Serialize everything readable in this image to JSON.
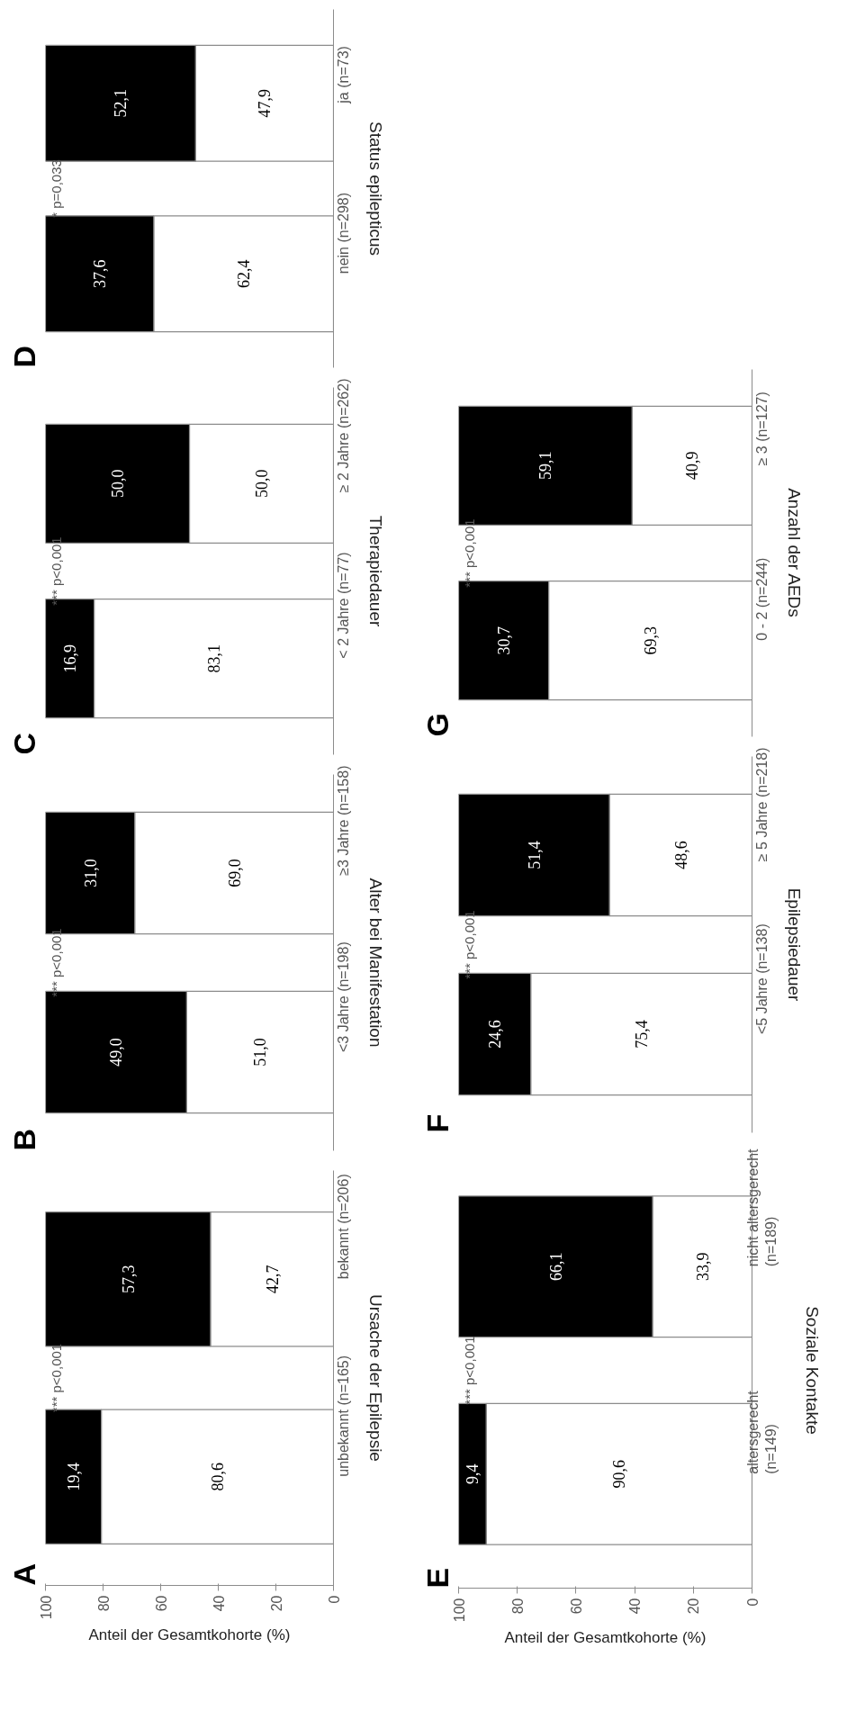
{
  "chart_data": [
    {
      "type": "bar",
      "title": "A",
      "orientation": "horizontal",
      "stacked": true,
      "categories": [
        "bekannt (n=206)",
        "unbekannt (n=165)"
      ],
      "series": [
        {
          "color": "#ffffff",
          "values": [
            42.7,
            80.6
          ],
          "value_labels": [
            "42,7",
            "80,6"
          ]
        },
        {
          "color": "#000000",
          "values": [
            57.3,
            19.4
          ],
          "value_labels": [
            "57,3",
            "19,4"
          ]
        }
      ],
      "xlim": [
        100,
        0
      ],
      "xticks": [
        100,
        80,
        60,
        40,
        20,
        0
      ],
      "xlabel": "Anteil der Gesamtkohorte (%)",
      "ylabel": "Ursache der Epilepsie",
      "annotations": [
        "*** p<0,001"
      ]
    },
    {
      "type": "bar",
      "title": "B",
      "orientation": "horizontal",
      "stacked": true,
      "categories": [
        "≥3 Jahre (n=158)",
        "<3 Jahre (n=198)"
      ],
      "series": [
        {
          "color": "#ffffff",
          "values": [
            69.0,
            51.0
          ],
          "value_labels": [
            "69,0",
            "51,0"
          ]
        },
        {
          "color": "#000000",
          "values": [
            31.0,
            49.0
          ],
          "value_labels": [
            "31,0",
            "49,0"
          ]
        }
      ],
      "xlim": [
        100,
        0
      ],
      "tick_labels": "y",
      "ylabel": "Alter bei Manifestation",
      "annotations": [
        "*** p<0,001"
      ]
    },
    {
      "type": "bar",
      "title": "C",
      "orientation": "horizontal",
      "stacked": true,
      "categories": [
        "≥ 2 Jahre (n=262)",
        "< 2 Jahre (n=77)"
      ],
      "series": [
        {
          "color": "#ffffff",
          "values": [
            50.0,
            83.1
          ],
          "value_labels": [
            "50,0",
            "83,1"
          ]
        },
        {
          "color": "#000000",
          "values": [
            50.0,
            16.9
          ],
          "value_labels": [
            "50,0",
            "16,9"
          ]
        }
      ],
      "xlim": [
        100,
        0
      ],
      "tick_labels": "y",
      "ylabel": "Therapiedauer",
      "annotations": [
        "*** p<0,001"
      ]
    },
    {
      "type": "bar",
      "title": "D",
      "orientation": "horizontal",
      "stacked": true,
      "categories": [
        "ja (n=73)",
        "nein (n=298)"
      ],
      "series": [
        {
          "color": "#ffffff",
          "values": [
            47.9,
            62.4
          ],
          "value_labels": [
            "47,9",
            "62,4"
          ]
        },
        {
          "color": "#000000",
          "values": [
            52.1,
            37.6
          ],
          "value_labels": [
            "52,1",
            "37,6"
          ]
        }
      ],
      "xlim": [
        100,
        0
      ],
      "tick_labels": "y",
      "ylabel": "Status epilepticus",
      "annotations": [
        "* p=0,033"
      ]
    },
    {
      "type": "bar",
      "title": "E",
      "orientation": "horizontal",
      "stacked": true,
      "categories": [
        "nicht altersgerecht\n(n=189)",
        "altersgerecht\n(n=149)"
      ],
      "series": [
        {
          "color": "#ffffff",
          "values": [
            33.9,
            90.6
          ],
          "value_labels": [
            "33,9",
            "90,6"
          ]
        },
        {
          "color": "#000000",
          "values": [
            66.1,
            9.4
          ],
          "value_labels": [
            "66,1",
            "9,4"
          ]
        }
      ],
      "xlim": [
        100,
        0
      ],
      "xticks": [
        100,
        80,
        60,
        40,
        20,
        0
      ],
      "xlabel": "Anteil der Gesamtkohorte (%)",
      "ylabel": "Soziale Kontakte",
      "annotations": [
        "*** p<0,001"
      ]
    },
    {
      "type": "bar",
      "title": "F",
      "orientation": "horizontal",
      "stacked": true,
      "categories": [
        "≥ 5 Jahre (n=218)",
        "<5 Jahre (n=138)"
      ],
      "series": [
        {
          "color": "#ffffff",
          "values": [
            48.6,
            75.4
          ],
          "value_labels": [
            "48,6",
            "75,4"
          ]
        },
        {
          "color": "#000000",
          "values": [
            51.4,
            24.6
          ],
          "value_labels": [
            "51,4",
            "24,6"
          ]
        }
      ],
      "xlim": [
        100,
        0
      ],
      "tick_labels": "y",
      "ylabel": "Epilepsiedauer",
      "annotations": [
        "*** p<0,001"
      ]
    },
    {
      "type": "bar",
      "title": "G",
      "orientation": "horizontal",
      "stacked": true,
      "categories": [
        "≥ 3 (n=127)",
        "0 - 2 (n=244)"
      ],
      "series": [
        {
          "color": "#ffffff",
          "values": [
            40.9,
            69.3
          ],
          "value_labels": [
            "40,9",
            "69,3"
          ]
        },
        {
          "color": "#000000",
          "values": [
            59.1,
            30.7
          ],
          "value_labels": [
            "59,1",
            "30,7"
          ]
        }
      ],
      "xlim": [
        100,
        0
      ],
      "tick_labels": "y",
      "ylabel": "Anzahl der AEDs",
      "annotations": [
        "*** p<0,001"
      ]
    }
  ]
}
